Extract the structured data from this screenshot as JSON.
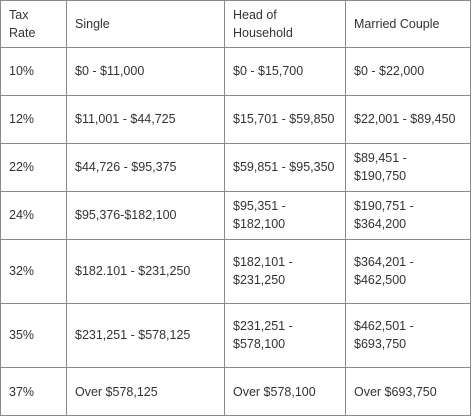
{
  "table": {
    "headers": [
      "Tax Rate",
      "Single",
      "Head of Household",
      "Married Couple"
    ],
    "rows": [
      [
        "10%",
        "$0 - $11,000",
        "$0 - $15,700",
        "$0 - $22,000"
      ],
      [
        "12%",
        "$11,001 - $44,725",
        "$15,701 - $59,850",
        "$22,001 - $89,450"
      ],
      [
        "22%",
        "$44,726 - $95,375",
        "$59,851 - $95,350",
        "$89,451 - $190,750"
      ],
      [
        "24%",
        "$95,376-$182,100",
        "$95,351 - $182,100",
        "$190,751 - $364,200"
      ],
      [
        "32%",
        "$182.101 - $231,250",
        "$182,101 - $231,250",
        "$364,201 - $462,500"
      ],
      [
        "35%",
        "$231,251 - $578,125",
        "$231,251 - $578,100",
        "$462,501 - $693,750"
      ],
      [
        "37%",
        "Over $578,125",
        "Over $578,100",
        "Over $693,750"
      ]
    ]
  }
}
